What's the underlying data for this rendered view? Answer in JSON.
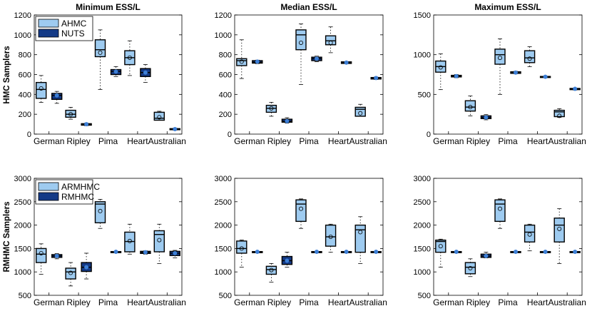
{
  "row_labels": [
    "HMC Samplers",
    "RMHMC Samplers"
  ],
  "colors": {
    "light_box": "#9ecbf0",
    "dark_box": "#143a86",
    "median_dot_light": "#6fb0e8",
    "median_dot_dark": "#3d7fd6",
    "stroke": "#000000"
  },
  "chart_data": [
    {
      "type": "boxplot",
      "title": "Minimum ESS/L",
      "ylim": [
        0,
        1200
      ],
      "yticks": [
        0,
        200,
        400,
        600,
        800,
        1000,
        1200
      ],
      "grid": false,
      "legend_position": "top-left",
      "categories": [
        "German",
        "Ripley",
        "Pima",
        "Heart",
        "Australian"
      ],
      "series": [
        {
          "name": "AHMC",
          "boxes": [
            {
              "min": 320,
              "q1": 360,
              "median": 450,
              "mean": 460,
              "q3": 520,
              "max": 590
            },
            {
              "min": 150,
              "q1": 170,
              "median": 200,
              "mean": 200,
              "q3": 240,
              "max": 270
            },
            {
              "min": 450,
              "q1": 780,
              "median": 850,
              "mean": 820,
              "q3": 950,
              "max": 1050
            },
            {
              "min": 590,
              "q1": 700,
              "median": 770,
              "mean": 770,
              "q3": 840,
              "max": 940
            },
            {
              "min": 140,
              "q1": 140,
              "median": 160,
              "mean": 170,
              "q3": 220,
              "max": 230
            }
          ]
        },
        {
          "name": "NUTS",
          "boxes": [
            {
              "min": 310,
              "q1": 350,
              "median": 390,
              "mean": 390,
              "q3": 410,
              "max": 430
            },
            {
              "min": 85,
              "q1": 90,
              "median": 100,
              "mean": 100,
              "q3": 105,
              "max": 110
            },
            {
              "min": 580,
              "q1": 600,
              "median": 630,
              "mean": 630,
              "q3": 650,
              "max": 680
            },
            {
              "min": 520,
              "q1": 580,
              "median": 620,
              "mean": 620,
              "q3": 660,
              "max": 700
            },
            {
              "min": 40,
              "q1": 45,
              "median": 50,
              "mean": 50,
              "q3": 55,
              "max": 60
            }
          ]
        }
      ]
    },
    {
      "type": "boxplot",
      "title": "Median ESS/L",
      "ylim": [
        0,
        1200
      ],
      "yticks": [
        0,
        200,
        400,
        600,
        800,
        1000,
        1200
      ],
      "grid": false,
      "categories": [
        "German",
        "Ripley",
        "Pima",
        "Heart",
        "Australian"
      ],
      "series": [
        {
          "name": "AHMC",
          "boxes": [
            {
              "min": 560,
              "q1": 690,
              "median": 740,
              "mean": 730,
              "q3": 760,
              "max": 950
            },
            {
              "min": 180,
              "q1": 220,
              "median": 260,
              "mean": 260,
              "q3": 290,
              "max": 320
            },
            {
              "min": 500,
              "q1": 850,
              "median": 1000,
              "mean": 920,
              "q3": 1050,
              "max": 1110
            },
            {
              "min": 820,
              "q1": 900,
              "median": 940,
              "mean": 920,
              "q3": 990,
              "max": 1080
            },
            {
              "min": 180,
              "q1": 180,
              "median": 250,
              "mean": 210,
              "q3": 270,
              "max": 300
            }
          ]
        },
        {
          "name": "NUTS",
          "boxes": [
            {
              "min": 710,
              "q1": 715,
              "median": 725,
              "mean": 730,
              "q3": 740,
              "max": 745
            },
            {
              "min": 110,
              "q1": 120,
              "median": 130,
              "mean": 130,
              "q3": 150,
              "max": 165
            },
            {
              "min": 730,
              "q1": 740,
              "median": 760,
              "mean": 760,
              "q3": 775,
              "max": 785
            },
            {
              "min": 710,
              "q1": 712,
              "median": 720,
              "mean": 720,
              "q3": 728,
              "max": 730
            },
            {
              "min": 550,
              "q1": 555,
              "median": 565,
              "mean": 565,
              "q3": 570,
              "max": 575
            }
          ]
        }
      ]
    },
    {
      "type": "boxplot",
      "title": "Maximum ESS/L",
      "ylim": [
        0,
        1500
      ],
      "yticks": [
        0,
        500,
        1000,
        1500
      ],
      "grid": false,
      "categories": [
        "German",
        "Ripley",
        "Pima",
        "Heart",
        "Australian"
      ],
      "series": [
        {
          "name": "AHMC",
          "boxes": [
            {
              "min": 560,
              "q1": 780,
              "median": 850,
              "mean": 840,
              "q3": 920,
              "max": 1010
            },
            {
              "min": 230,
              "q1": 290,
              "median": 340,
              "mean": 340,
              "q3": 420,
              "max": 480
            },
            {
              "min": 500,
              "q1": 880,
              "median": 1000,
              "mean": 960,
              "q3": 1070,
              "max": 1200
            },
            {
              "min": 850,
              "q1": 900,
              "median": 960,
              "mean": 950,
              "q3": 1050,
              "max": 1100
            },
            {
              "min": 210,
              "q1": 220,
              "median": 280,
              "mean": 230,
              "q3": 300,
              "max": 320
            }
          ]
        },
        {
          "name": "NUTS",
          "boxes": [
            {
              "min": 710,
              "q1": 720,
              "median": 730,
              "mean": 730,
              "q3": 740,
              "max": 750
            },
            {
              "min": 180,
              "q1": 195,
              "median": 210,
              "mean": 210,
              "q3": 230,
              "max": 245
            },
            {
              "min": 760,
              "q1": 765,
              "median": 775,
              "mean": 775,
              "q3": 785,
              "max": 790
            },
            {
              "min": 715,
              "q1": 718,
              "median": 722,
              "mean": 722,
              "q3": 726,
              "max": 730
            },
            {
              "min": 555,
              "q1": 560,
              "median": 570,
              "mean": 570,
              "q3": 575,
              "max": 580
            }
          ]
        }
      ]
    },
    {
      "type": "boxplot",
      "title": "",
      "ylim": [
        500,
        3000
      ],
      "yticks": [
        500,
        1000,
        1500,
        2000,
        2500,
        3000
      ],
      "grid": false,
      "legend_position": "top-left",
      "categories": [
        "German",
        "Ripley",
        "Pima",
        "Heart",
        "Australian"
      ],
      "series": [
        {
          "name": "ARMHMC",
          "boxes": [
            {
              "min": 950,
              "q1": 1200,
              "median": 1380,
              "mean": 1400,
              "q3": 1500,
              "max": 1600
            },
            {
              "min": 700,
              "q1": 850,
              "median": 1000,
              "mean": 980,
              "q3": 1080,
              "max": 1200
            },
            {
              "min": 1930,
              "q1": 2050,
              "median": 2450,
              "mean": 2300,
              "q3": 2500,
              "max": 2550
            },
            {
              "min": 1380,
              "q1": 1430,
              "median": 1650,
              "mean": 1660,
              "q3": 1850,
              "max": 2020
            },
            {
              "min": 1180,
              "q1": 1430,
              "median": 1800,
              "mean": 1680,
              "q3": 1880,
              "max": 2020
            }
          ]
        },
        {
          "name": "RMHMC",
          "boxes": [
            {
              "min": 1280,
              "q1": 1310,
              "median": 1340,
              "mean": 1340,
              "q3": 1370,
              "max": 1390
            },
            {
              "min": 850,
              "q1": 1010,
              "median": 1100,
              "mean": 1100,
              "q3": 1200,
              "max": 1400
            },
            {
              "min": 1420,
              "q1": 1425,
              "median": 1430,
              "mean": 1430,
              "q3": 1435,
              "max": 1440
            },
            {
              "min": 1380,
              "q1": 1395,
              "median": 1420,
              "mean": 1420,
              "q3": 1440,
              "max": 1450
            },
            {
              "min": 1300,
              "q1": 1350,
              "median": 1400,
              "mean": 1400,
              "q3": 1440,
              "max": 1460
            }
          ]
        }
      ]
    },
    {
      "type": "boxplot",
      "title": "",
      "ylim": [
        500,
        3000
      ],
      "yticks": [
        500,
        1000,
        1500,
        2000,
        2500,
        3000
      ],
      "grid": false,
      "categories": [
        "German",
        "Ripley",
        "Pima",
        "Heart",
        "Australian"
      ],
      "series": [
        {
          "name": "ARMHMC",
          "boxes": [
            {
              "min": 1100,
              "q1": 1400,
              "median": 1500,
              "mean": 1500,
              "q3": 1660,
              "max": 1680
            },
            {
              "min": 780,
              "q1": 950,
              "median": 1050,
              "mean": 1040,
              "q3": 1120,
              "max": 1180
            },
            {
              "min": 1930,
              "q1": 2080,
              "median": 2450,
              "mean": 2350,
              "q3": 2540,
              "max": 2560
            },
            {
              "min": 1420,
              "q1": 1550,
              "median": 1750,
              "mean": 1750,
              "q3": 2000,
              "max": 2020
            },
            {
              "min": 1180,
              "q1": 1420,
              "median": 1900,
              "mean": 1850,
              "q3": 2000,
              "max": 2180
            }
          ]
        },
        {
          "name": "RMHMC",
          "boxes": [
            {
              "min": 1420,
              "q1": 1425,
              "median": 1430,
              "mean": 1430,
              "q3": 1435,
              "max": 1440
            },
            {
              "min": 1100,
              "q1": 1160,
              "median": 1240,
              "mean": 1240,
              "q3": 1330,
              "max": 1420
            },
            {
              "min": 1420,
              "q1": 1425,
              "median": 1430,
              "mean": 1430,
              "q3": 1435,
              "max": 1440
            },
            {
              "min": 1420,
              "q1": 1425,
              "median": 1430,
              "mean": 1430,
              "q3": 1435,
              "max": 1440
            },
            {
              "min": 1420,
              "q1": 1425,
              "median": 1430,
              "mean": 1430,
              "q3": 1435,
              "max": 1440
            }
          ]
        }
      ]
    },
    {
      "type": "boxplot",
      "title": "",
      "ylim": [
        500,
        3000
      ],
      "yticks": [
        500,
        1000,
        1500,
        2000,
        2500,
        3000
      ],
      "grid": false,
      "categories": [
        "German",
        "Ripley",
        "Pima",
        "Heart",
        "Australian"
      ],
      "series": [
        {
          "name": "ARMHMC",
          "boxes": [
            {
              "min": 1100,
              "q1": 1420,
              "median": 1650,
              "mean": 1550,
              "q3": 1680,
              "max": 1700
            },
            {
              "min": 900,
              "q1": 960,
              "median": 1100,
              "mean": 1080,
              "q3": 1200,
              "max": 1280
            },
            {
              "min": 1930,
              "q1": 2080,
              "median": 2450,
              "mean": 2350,
              "q3": 2540,
              "max": 2560
            },
            {
              "min": 1450,
              "q1": 1640,
              "median": 1850,
              "mean": 1800,
              "q3": 2000,
              "max": 2020
            },
            {
              "min": 1180,
              "q1": 1640,
              "median": 2000,
              "mean": 1920,
              "q3": 2150,
              "max": 2350
            }
          ]
        },
        {
          "name": "RMHMC",
          "boxes": [
            {
              "min": 1420,
              "q1": 1425,
              "median": 1430,
              "mean": 1430,
              "q3": 1435,
              "max": 1440
            },
            {
              "min": 1300,
              "q1": 1310,
              "median": 1340,
              "mean": 1340,
              "q3": 1380,
              "max": 1420
            },
            {
              "min": 1420,
              "q1": 1425,
              "median": 1430,
              "mean": 1430,
              "q3": 1435,
              "max": 1440
            },
            {
              "min": 1420,
              "q1": 1425,
              "median": 1430,
              "mean": 1430,
              "q3": 1435,
              "max": 1440
            },
            {
              "min": 1420,
              "q1": 1425,
              "median": 1430,
              "mean": 1430,
              "q3": 1435,
              "max": 1440
            }
          ]
        }
      ]
    }
  ]
}
